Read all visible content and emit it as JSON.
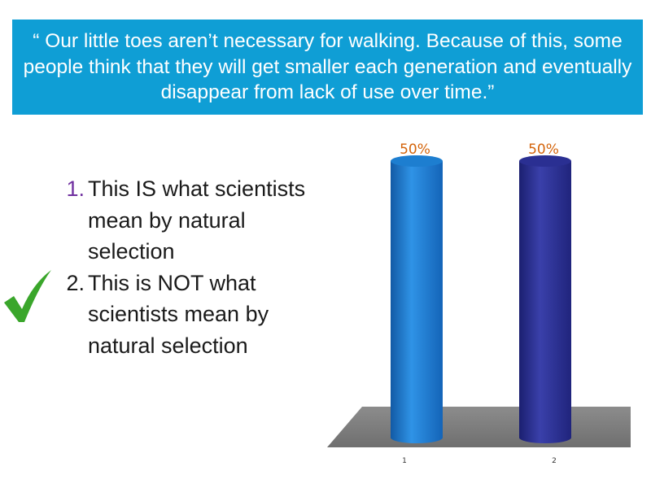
{
  "question": {
    "text": "“ Our little toes aren’t necessary for walking. Because of this, some people think that they will get smaller each generation and eventually disappear from lack of use over time.”",
    "background_color": "#0f9ed5"
  },
  "answers": [
    {
      "number": "1.",
      "text": "This IS what scientists mean by natural selection"
    },
    {
      "number": "2.",
      "text": "This is NOT what scientists mean by natural selection",
      "correct": true
    }
  ],
  "correct_marker": {
    "icon": "checkmark-icon",
    "color": "#3aa62b"
  },
  "chart_data": {
    "type": "bar",
    "categories": [
      "1",
      "2"
    ],
    "values": [
      50,
      50
    ],
    "data_labels": [
      "50%",
      "50%"
    ],
    "ylim": [
      0,
      50
    ],
    "colors": [
      "#1d7ed0",
      "#2a2f92"
    ],
    "floor_color": "#808080",
    "label_color": "#d4640b",
    "grid": false,
    "legend": false
  }
}
